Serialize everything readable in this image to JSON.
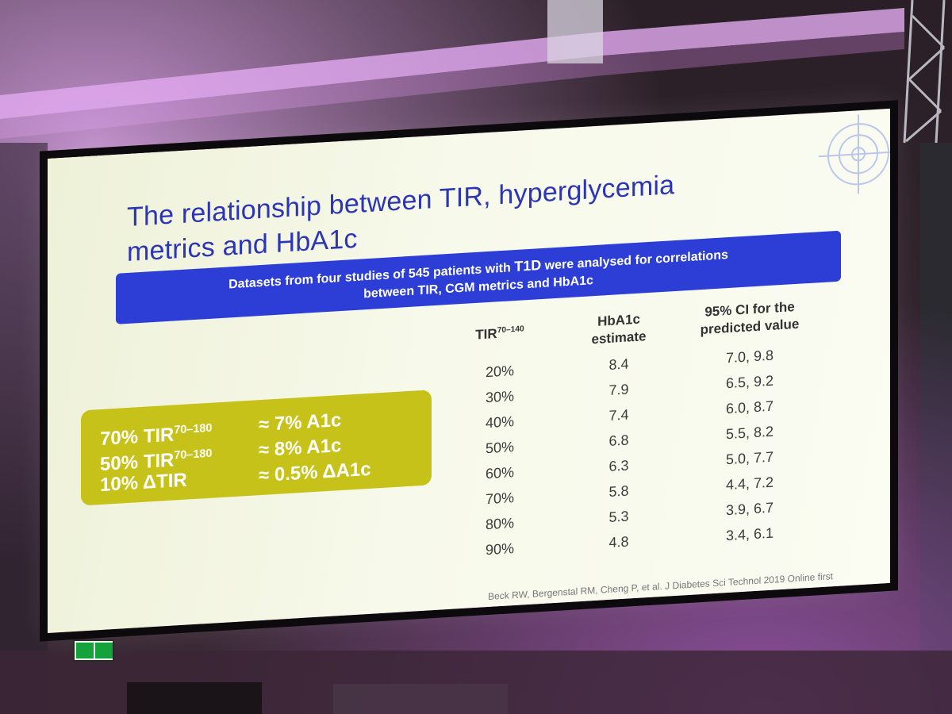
{
  "slide": {
    "title_line1": "The relationship between TIR, hyperglycemia",
    "title_line2": "metrics and HbA1c",
    "banner_line1_pre": "Datasets from four studies of 545 patients with ",
    "banner_line1_bold": "T1D",
    "banner_line1_post": " were analysed for correlations",
    "banner_line2": "between TIR, CGM metrics and HbA1c",
    "callout": {
      "rows": [
        {
          "left": "70% TIR",
          "sup": "70–180",
          "right": "≈  7% A1c"
        },
        {
          "left": "50% TIR",
          "sup": "70–180",
          "right": "≈  8% A1c"
        },
        {
          "left": "10% ΔTIR",
          "sup": "",
          "right": "≈ 0.5% ΔA1c"
        }
      ]
    },
    "table": {
      "col1_header": "TIR",
      "col1_header_sup": "70–140",
      "col2_header_line1": "HbA1c",
      "col2_header_line2": "estimate",
      "col3_header_line1": "95% CI for the",
      "col3_header_line2": "predicted value",
      "rows": [
        {
          "tir": "20%",
          "hba1c": "8.4",
          "ci": "7.0, 9.8"
        },
        {
          "tir": "30%",
          "hba1c": "7.9",
          "ci": "6.5, 9.2"
        },
        {
          "tir": "40%",
          "hba1c": "7.4",
          "ci": "6.0, 8.7"
        },
        {
          "tir": "50%",
          "hba1c": "6.8",
          "ci": "5.5, 8.2"
        },
        {
          "tir": "60%",
          "hba1c": "6.3",
          "ci": "5.0, 7.7"
        },
        {
          "tir": "70%",
          "hba1c": "5.8",
          "ci": "4.4, 7.2"
        },
        {
          "tir": "80%",
          "hba1c": "5.3",
          "ci": "3.9, 6.7"
        },
        {
          "tir": "90%",
          "hba1c": "4.8",
          "ci": "3.4, 6.1"
        }
      ]
    },
    "citation": "Beck RW, Bergenstal RM, Cheng P, et al. J Diabetes Sci Technol 2019 Online first"
  },
  "colors": {
    "title": "#2b35b5",
    "banner": "#2d3ed6",
    "callout": "#c6c21a",
    "stage_light": "#c07ad0"
  }
}
